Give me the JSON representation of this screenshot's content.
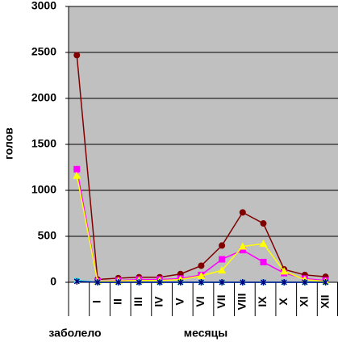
{
  "chart_data": {
    "type": "line",
    "y_label": "голов",
    "x_label": "месяцы",
    "categories": [
      "заболело",
      "I",
      "II",
      "III",
      "IV",
      "V",
      "VI",
      "VII",
      "VIII",
      "IX",
      "X",
      "XI",
      "XII"
    ],
    "series": [
      {
        "color": "#800000",
        "marker": "circle",
        "values": [
          2470,
          30,
          45,
          55,
          55,
          90,
          180,
          400,
          760,
          640,
          140,
          80,
          60
        ]
      },
      {
        "color": "#ff00ff",
        "marker": "square",
        "values": [
          1230,
          10,
          20,
          30,
          30,
          40,
          80,
          250,
          350,
          220,
          100,
          40,
          20
        ]
      },
      {
        "color": "#ffff00",
        "marker": "triangle",
        "values": [
          1160,
          10,
          15,
          20,
          20,
          30,
          70,
          130,
          390,
          420,
          120,
          30,
          10
        ]
      },
      {
        "color": "#00ffff",
        "marker": "cross",
        "values": [
          20,
          0,
          0,
          0,
          0,
          0,
          0,
          0,
          0,
          0,
          0,
          0,
          0
        ]
      },
      {
        "color": "#000080",
        "marker": "star",
        "values": [
          10,
          0,
          0,
          0,
          0,
          0,
          0,
          0,
          0,
          0,
          0,
          0,
          0
        ]
      }
    ],
    "ylim": [
      0,
      3000
    ],
    "yticks": [
      0,
      500,
      1000,
      1500,
      2000,
      2500,
      3000
    ],
    "grid": true,
    "background": "#c0c0c0"
  }
}
